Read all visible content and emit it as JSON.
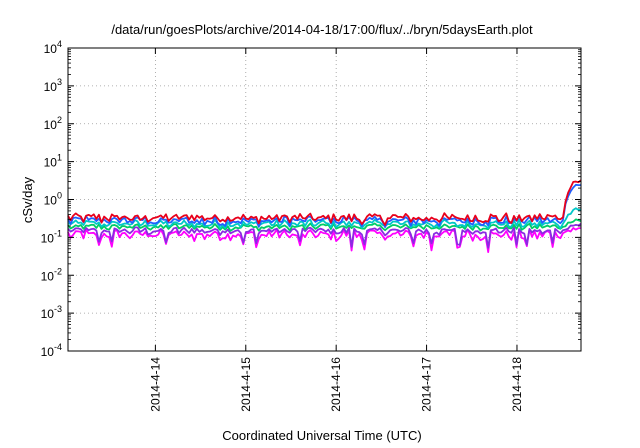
{
  "chart_data": {
    "type": "line",
    "title": "/data/run/goesPlots/archive/2014-04-18/17:00/flux/../bryn/5daysEarth.plot",
    "xlabel": "Coordinated Universal Time (UTC)",
    "ylabel": "cSv/day",
    "yscale": "log",
    "ylim": [
      0.0001,
      10000
    ],
    "y_ticks": [
      {
        "value": 0.0001,
        "base": "10",
        "exp": "-4"
      },
      {
        "value": 0.001,
        "base": "10",
        "exp": "-3"
      },
      {
        "value": 0.01,
        "base": "10",
        "exp": "-2"
      },
      {
        "value": 0.1,
        "base": "10",
        "exp": "-1"
      },
      {
        "value": 1,
        "base": "10",
        "exp": "0"
      },
      {
        "value": 10,
        "base": "10",
        "exp": "1"
      },
      {
        "value": 100,
        "base": "10",
        "exp": "2"
      },
      {
        "value": 1000,
        "base": "10",
        "exp": "3"
      },
      {
        "value": 10000,
        "base": "10",
        "exp": "4"
      }
    ],
    "x_ticks": [
      "2014-4-14",
      "2014-4-15",
      "2014-4-16",
      "2014-4-17",
      "2014-4-18"
    ],
    "xlim": [
      "2014-04-13 00:48",
      "2014-04-18 17:00"
    ],
    "grid": true,
    "legend": "none",
    "series": [
      {
        "color": "#ff00ff",
        "baseline": 0.12,
        "amp": 0.2,
        "end_value": 0.17
      },
      {
        "color": "#8a2be2",
        "baseline": 0.15,
        "amp": 0.14,
        "end_value": 0.22
      },
      {
        "color": "#00cc66",
        "baseline": 0.19,
        "amp": 0.12,
        "end_value": 0.28
      },
      {
        "color": "#00c8c8",
        "baseline": 0.23,
        "amp": 0.15,
        "end_value": 0.55
      },
      {
        "color": "#1f5fff",
        "baseline": 0.28,
        "amp": 0.18,
        "end_value": 2.3
      },
      {
        "color": "#e8001c",
        "baseline": 0.33,
        "amp": 0.18,
        "end_value": 3.0
      }
    ]
  }
}
